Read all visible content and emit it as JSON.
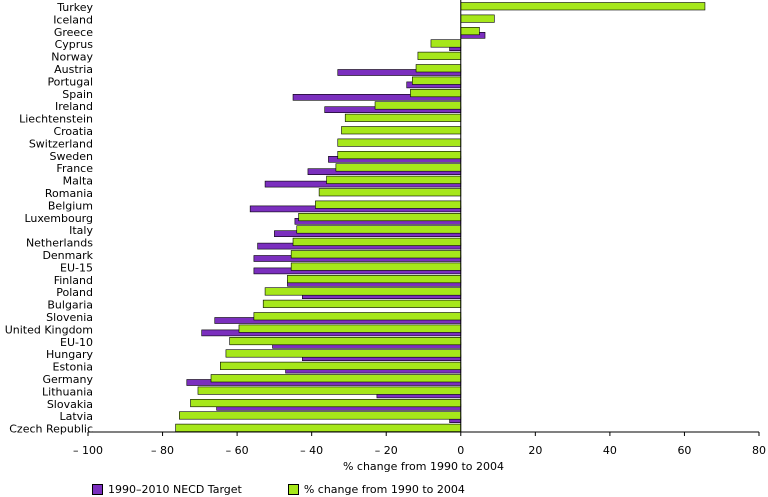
{
  "chart_data": {
    "type": "bar",
    "orientation": "horizontal",
    "xlabel": "% change from 1990 to 2004",
    "xlim": [
      -100,
      80
    ],
    "xticks": [
      -100,
      -80,
      -60,
      -40,
      -20,
      0,
      20,
      40,
      60,
      80
    ],
    "xtick_labels": [
      "– 100",
      "– 80",
      "– 60",
      "– 40",
      "– 20",
      "0",
      "20",
      "40",
      "60",
      "80"
    ],
    "categories": [
      "Turkey",
      "Iceland",
      "Greece",
      "Cyprus",
      "Norway",
      "Austria",
      "Portugal",
      "Spain",
      "Ireland",
      "Liechtenstein",
      "Croatia",
      "Switzerland",
      "Sweden",
      "France",
      "Malta",
      "Romania",
      "Belgium",
      "Luxembourg",
      "Italy",
      "Netherlands",
      "Denmark",
      "EU-15",
      "Finland",
      "Poland",
      "Bulgaria",
      "Slovenia",
      "United Kingdom",
      "EU-10",
      "Hungary",
      "Estonia",
      "Germany",
      "Lithuania",
      "Slovakia",
      "Latvia",
      "Czech Republic"
    ],
    "series": [
      {
        "name": "1990–2010 NECD Target",
        "color": "#7b2fbe",
        "values": [
          null,
          null,
          6.5,
          -3,
          null,
          -33,
          -14.5,
          -45,
          -36.5,
          null,
          null,
          null,
          -35.5,
          -41,
          -52.5,
          null,
          -56.5,
          -44.5,
          -50,
          -54.5,
          -55.5,
          -55.5,
          -46.5,
          -42.5,
          null,
          -66,
          -69.5,
          -50.5,
          -42.5,
          -47,
          -73.5,
          -22.5,
          -65.5,
          -3,
          null
        ]
      },
      {
        "name": "% change from 1990 to 2004",
        "color": "#a6e71a",
        "values": [
          65.5,
          9,
          5,
          -8,
          -11.5,
          -12,
          -13,
          -13.5,
          -23,
          -31,
          -32,
          -33,
          -33,
          -33.5,
          -36,
          -38,
          -39,
          -43.5,
          -44,
          -45,
          -45.5,
          -45.5,
          -46.5,
          -52.5,
          -53,
          -55.5,
          -59.5,
          -62,
          -63,
          -64.5,
          -67,
          -70.5,
          -72.5,
          -75.5,
          -76.5
        ]
      }
    ],
    "legend_position": "bottom",
    "grid": false
  }
}
